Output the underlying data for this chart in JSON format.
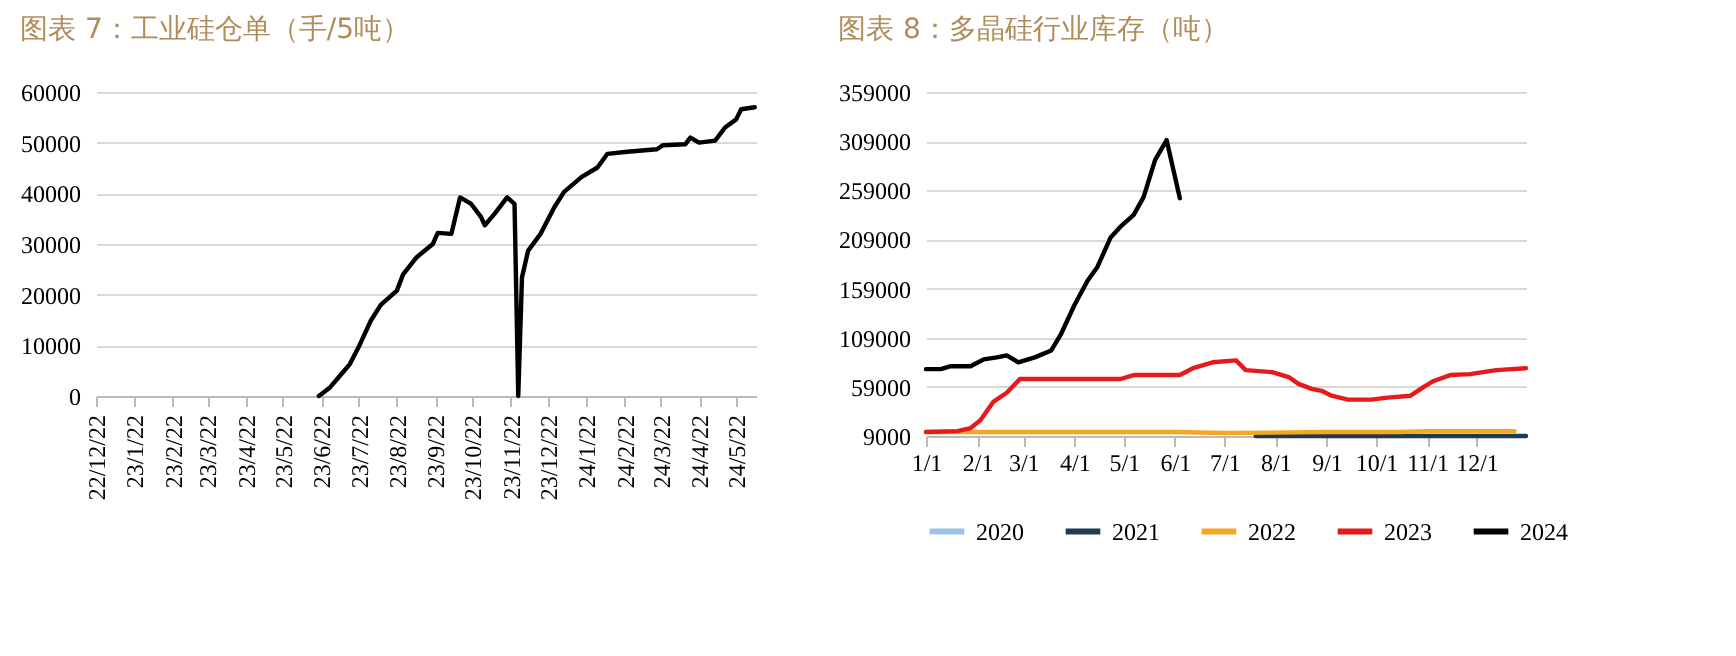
{
  "chart_data": [
    {
      "type": "line",
      "title": "图表 7：工业硅仓单（手/5吨）",
      "color": "#000000",
      "grid": "y",
      "xlim": [
        "2022-12-22",
        "2024-06-07"
      ],
      "xticks": [
        {
          "value": "2022-12-22",
          "label": "22/12/22"
        },
        {
          "value": "2023-01-22",
          "label": "23/1/22"
        },
        {
          "value": "2023-02-22",
          "label": "23/2/22"
        },
        {
          "value": "2023-03-22",
          "label": "23/3/22"
        },
        {
          "value": "2023-04-22",
          "label": "23/4/22"
        },
        {
          "value": "2023-05-22",
          "label": "23/5/22"
        },
        {
          "value": "2023-06-22",
          "label": "23/6/22"
        },
        {
          "value": "2023-07-22",
          "label": "23/7/22"
        },
        {
          "value": "2023-08-22",
          "label": "23/8/22"
        },
        {
          "value": "2023-09-22",
          "label": "23/9/22"
        },
        {
          "value": "2023-10-22",
          "label": "23/10/22"
        },
        {
          "value": "2023-11-22",
          "label": "23/11/22"
        },
        {
          "value": "2023-12-22",
          "label": "23/12/22"
        },
        {
          "value": "2024-01-22",
          "label": "24/1/22"
        },
        {
          "value": "2024-02-22",
          "label": "24/2/22"
        },
        {
          "value": "2024-03-22",
          "label": "24/3/22"
        },
        {
          "value": "2024-04-22",
          "label": "24/4/22"
        },
        {
          "value": "2024-05-22",
          "label": "24/5/22"
        }
      ],
      "ylim": [
        0,
        60000
      ],
      "yticks": [
        0,
        10000,
        20000,
        30000,
        40000,
        50000,
        60000
      ],
      "x": [
        "2023-06-20",
        "2023-06-29",
        "2023-07-07",
        "2023-07-15",
        "2023-07-22",
        "2023-08-01",
        "2023-08-09",
        "2023-08-22",
        "2023-08-27",
        "2023-09-07",
        "2023-09-20",
        "2023-09-24",
        "2023-10-05",
        "2023-10-12",
        "2023-10-21",
        "2023-10-29",
        "2023-11-01",
        "2023-11-09",
        "2023-11-19",
        "2023-11-25",
        "2023-11-28",
        "2023-12-01",
        "2023-12-06",
        "2023-12-16",
        "2023-12-27",
        "2024-01-04",
        "2024-01-18",
        "2024-01-31",
        "2024-02-08",
        "2024-02-24",
        "2024-03-19",
        "2024-03-24",
        "2024-04-11",
        "2024-04-15",
        "2024-04-22",
        "2024-05-05",
        "2024-05-13",
        "2024-05-22",
        "2024-05-26",
        "2024-06-06"
      ],
      "values": [
        0,
        1700,
        4000,
        6300,
        9600,
        14900,
        18000,
        20800,
        24000,
        27400,
        30000,
        32200,
        32000,
        39200,
        37900,
        35300,
        33700,
        36000,
        39200,
        37900,
        0,
        23400,
        28700,
        32000,
        37200,
        40300,
        43200,
        45100,
        47800,
        48200,
        48700,
        49500,
        49700,
        51000,
        50000,
        50400,
        53000,
        54600,
        56600,
        57000
      ]
    },
    {
      "type": "line",
      "title": "图表 8：多晶硅行业库存（吨）",
      "grid": "y",
      "legend": "bottom",
      "xlim": [
        "--01-01",
        "--12-31"
      ],
      "xticks": [
        {
          "value": "--01-01",
          "label": "1/1"
        },
        {
          "value": "--02-01",
          "label": "2/1"
        },
        {
          "value": "--03-01",
          "label": "3/1"
        },
        {
          "value": "--04-01",
          "label": "4/1"
        },
        {
          "value": "--05-01",
          "label": "5/1"
        },
        {
          "value": "--06-01",
          "label": "6/1"
        },
        {
          "value": "--07-01",
          "label": "7/1"
        },
        {
          "value": "--08-01",
          "label": "8/1"
        },
        {
          "value": "--09-01",
          "label": "9/1"
        },
        {
          "value": "--10-01",
          "label": "10/1"
        },
        {
          "value": "--11-01",
          "label": "11/1"
        },
        {
          "value": "--12-01",
          "label": "12/1"
        }
      ],
      "ylim": [
        9000,
        359000
      ],
      "yticks": [
        9000,
        59000,
        109000,
        159000,
        209000,
        259000,
        309000,
        359000
      ],
      "series": [
        {
          "name": "2020",
          "color": "#9dc3e6"
        },
        {
          "name": "2021",
          "color": "#1f3b4d",
          "x": [
            "--07-20",
            "--12-31"
          ],
          "values": [
            9000,
            9000
          ]
        },
        {
          "name": "2022",
          "color": "#f5a623",
          "x": [
            "--01-01",
            "--03-01",
            "--06-01",
            "--07-01",
            "--09-01",
            "--10-15",
            "--11-01",
            "--12-24"
          ],
          "values": [
            13000,
            13000,
            13000,
            12000,
            13000,
            13000,
            14000,
            14000
          ]
        },
        {
          "name": "2023",
          "color": "#e41a1c",
          "x": [
            "--01-01",
            "--01-20",
            "--01-28",
            "--02-03",
            "--02-11",
            "--02-19",
            "--02-27",
            "--03-08",
            "--04-29",
            "--05-07",
            "--06-04",
            "--06-12",
            "--06-24",
            "--07-08",
            "--07-14",
            "--07-30",
            "--08-09",
            "--08-15",
            "--08-23",
            "--08-29",
            "--09-04",
            "--09-14",
            "--09-28",
            "--10-08",
            "--10-22",
            "--10-30",
            "--11-05",
            "--11-15",
            "--11-27",
            "--12-13",
            "--12-31"
          ],
          "values": [
            13000,
            14000,
            17000,
            25000,
            44000,
            53000,
            67000,
            67000,
            67000,
            71000,
            71000,
            78000,
            84000,
            86000,
            76000,
            74000,
            69000,
            62000,
            57000,
            55000,
            50000,
            46000,
            46000,
            48000,
            50000,
            59000,
            65000,
            71000,
            72000,
            76000,
            78000
          ]
        },
        {
          "name": "2024",
          "color": "#000000",
          "x": [
            "--01-01",
            "--01-10",
            "--01-16",
            "--01-28",
            "--02-05",
            "--02-13",
            "--02-19",
            "--02-26",
            "--03-08",
            "--03-18",
            "--03-24",
            "--04-01",
            "--04-09",
            "--04-15",
            "--04-23",
            "--04-29",
            "--05-07",
            "--05-13",
            "--05-20",
            "--05-27",
            "--06-04"
          ],
          "values": [
            77000,
            77000,
            80000,
            80000,
            87000,
            89000,
            91000,
            84000,
            89000,
            96000,
            113000,
            142000,
            167000,
            181000,
            211000,
            222000,
            234000,
            252000,
            290000,
            310000,
            251000
          ]
        }
      ]
    }
  ]
}
